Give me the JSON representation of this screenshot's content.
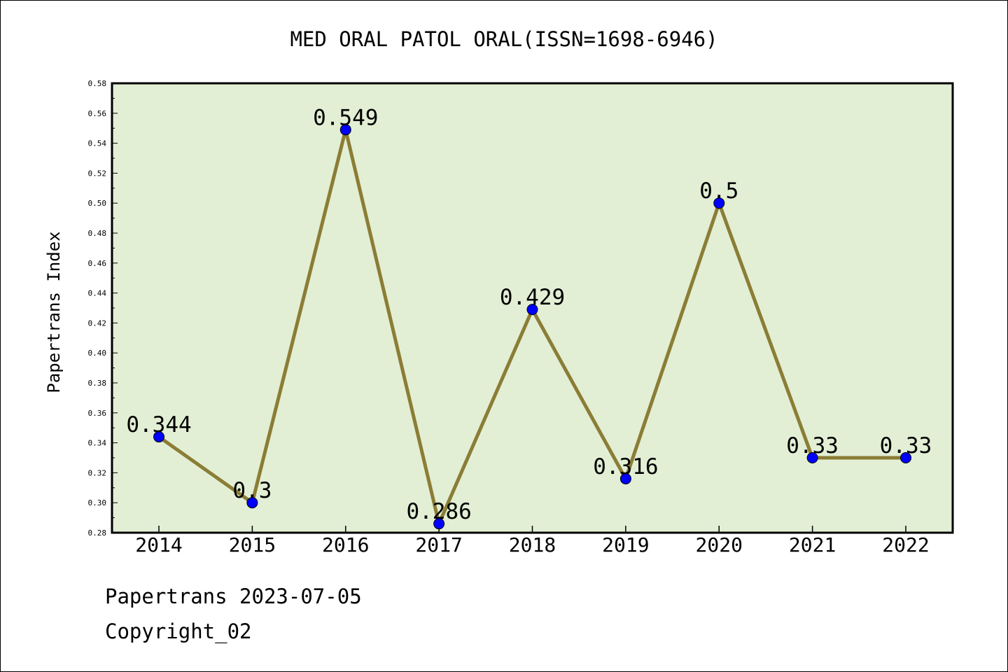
{
  "chart_data": {
    "type": "line",
    "title": "MED ORAL PATOL ORAL(ISSN=1698-6946)",
    "xlabel": "",
    "ylabel": "Papertrans Index",
    "categories": [
      "2014",
      "2015",
      "2016",
      "2017",
      "2018",
      "2019",
      "2020",
      "2021",
      "2022"
    ],
    "values": [
      0.344,
      0.3,
      0.549,
      0.286,
      0.429,
      0.316,
      0.5,
      0.33,
      0.33
    ],
    "data_labels": [
      "0.344",
      "0.3",
      "0.549",
      "0.286",
      "0.429",
      "0.316",
      "0.5",
      "0.33",
      "0.33"
    ],
    "ylim": [
      0.28,
      0.58
    ],
    "yticks": [
      "0.28",
      "0.30",
      "0.32",
      "0.34",
      "0.36",
      "0.38",
      "0.40",
      "0.42",
      "0.44",
      "0.46",
      "0.48",
      "0.50",
      "0.52",
      "0.54",
      "0.56",
      "0.58"
    ],
    "grid": false,
    "legend": "none",
    "colors": {
      "line": "#8b7d35",
      "marker": "#0000ff",
      "plot_background": "#e2efd5"
    }
  },
  "footer": {
    "line1": "Papertrans 2023-07-05",
    "line2": "Copyright_02"
  }
}
